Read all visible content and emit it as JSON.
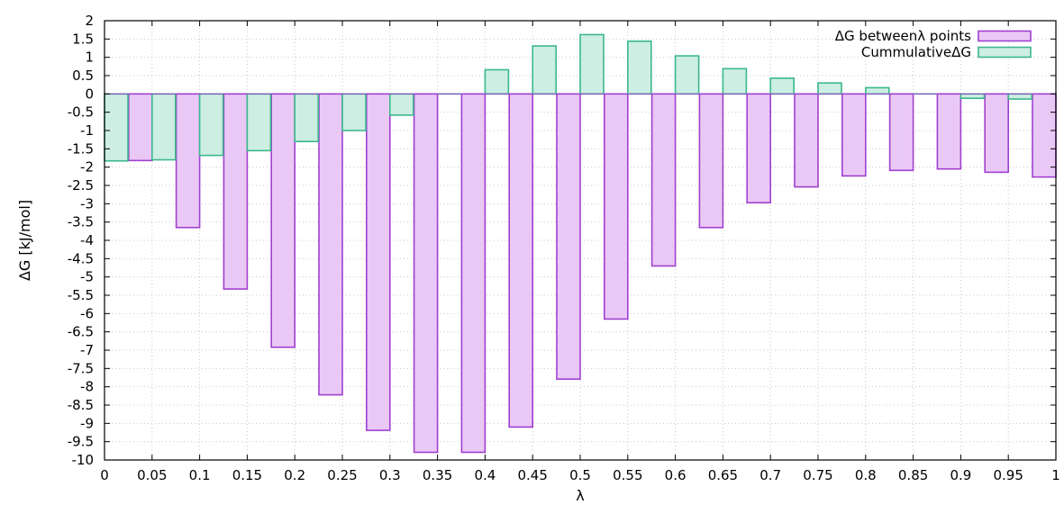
{
  "chart_data": {
    "type": "bar",
    "xlabel": "λ",
    "ylabel": "ΔG [kJ/mol]",
    "xlim": [
      0,
      1
    ],
    "ylim": [
      -10,
      2
    ],
    "x_ticks": [
      "0",
      "0.05",
      "0.1",
      "0.15",
      "0.2",
      "0.25",
      "0.3",
      "0.35",
      "0.4",
      "0.45",
      "0.5",
      "0.55",
      "0.6",
      "0.65",
      "0.7",
      "0.75",
      "0.8",
      "0.85",
      "0.9",
      "0.95",
      "1"
    ],
    "y_ticks": [
      "2",
      "1.5",
      "1",
      "0.5",
      "0",
      "-0.5",
      "-1",
      "-1.5",
      "-2",
      "-2.5",
      "-3",
      "-3.5",
      "-4",
      "-4.5",
      "-5",
      "-5.5",
      "-6",
      "-6.5",
      "-7",
      "-7.5",
      "-8",
      "-8.5",
      "-9",
      "-9.5",
      "-10"
    ],
    "grid": true,
    "legend_position": "top-right",
    "categories": [
      0,
      0.05,
      0.1,
      0.15,
      0.2,
      0.25,
      0.3,
      0.35,
      0.4,
      0.45,
      0.5,
      0.55,
      0.6,
      0.65,
      0.7,
      0.75,
      0.8,
      0.85,
      0.9,
      0.95,
      1
    ],
    "series": [
      {
        "name": "ΔG betweenλ points",
        "color": "#a040d0",
        "fill": "#eac8f5",
        "values": [
          0.0,
          -1.82,
          -3.65,
          -5.33,
          -6.92,
          -8.22,
          -9.19,
          -9.79,
          -9.79,
          -9.1,
          -7.79,
          -6.15,
          -4.7,
          -3.65,
          -2.97,
          -2.54,
          -2.24,
          -2.09,
          -2.05,
          -2.14,
          -2.27
        ]
      },
      {
        "name": "CummulativeΔG",
        "color": "#3cb88c",
        "fill": "#cdeee2",
        "values": [
          -1.83,
          -1.8,
          -1.68,
          -1.55,
          -1.3,
          -1.0,
          -0.58,
          0.0,
          0.66,
          1.31,
          1.62,
          1.44,
          1.04,
          0.69,
          0.43,
          0.3,
          0.17,
          0.0,
          -0.12,
          -0.14,
          0.0
        ]
      }
    ]
  }
}
